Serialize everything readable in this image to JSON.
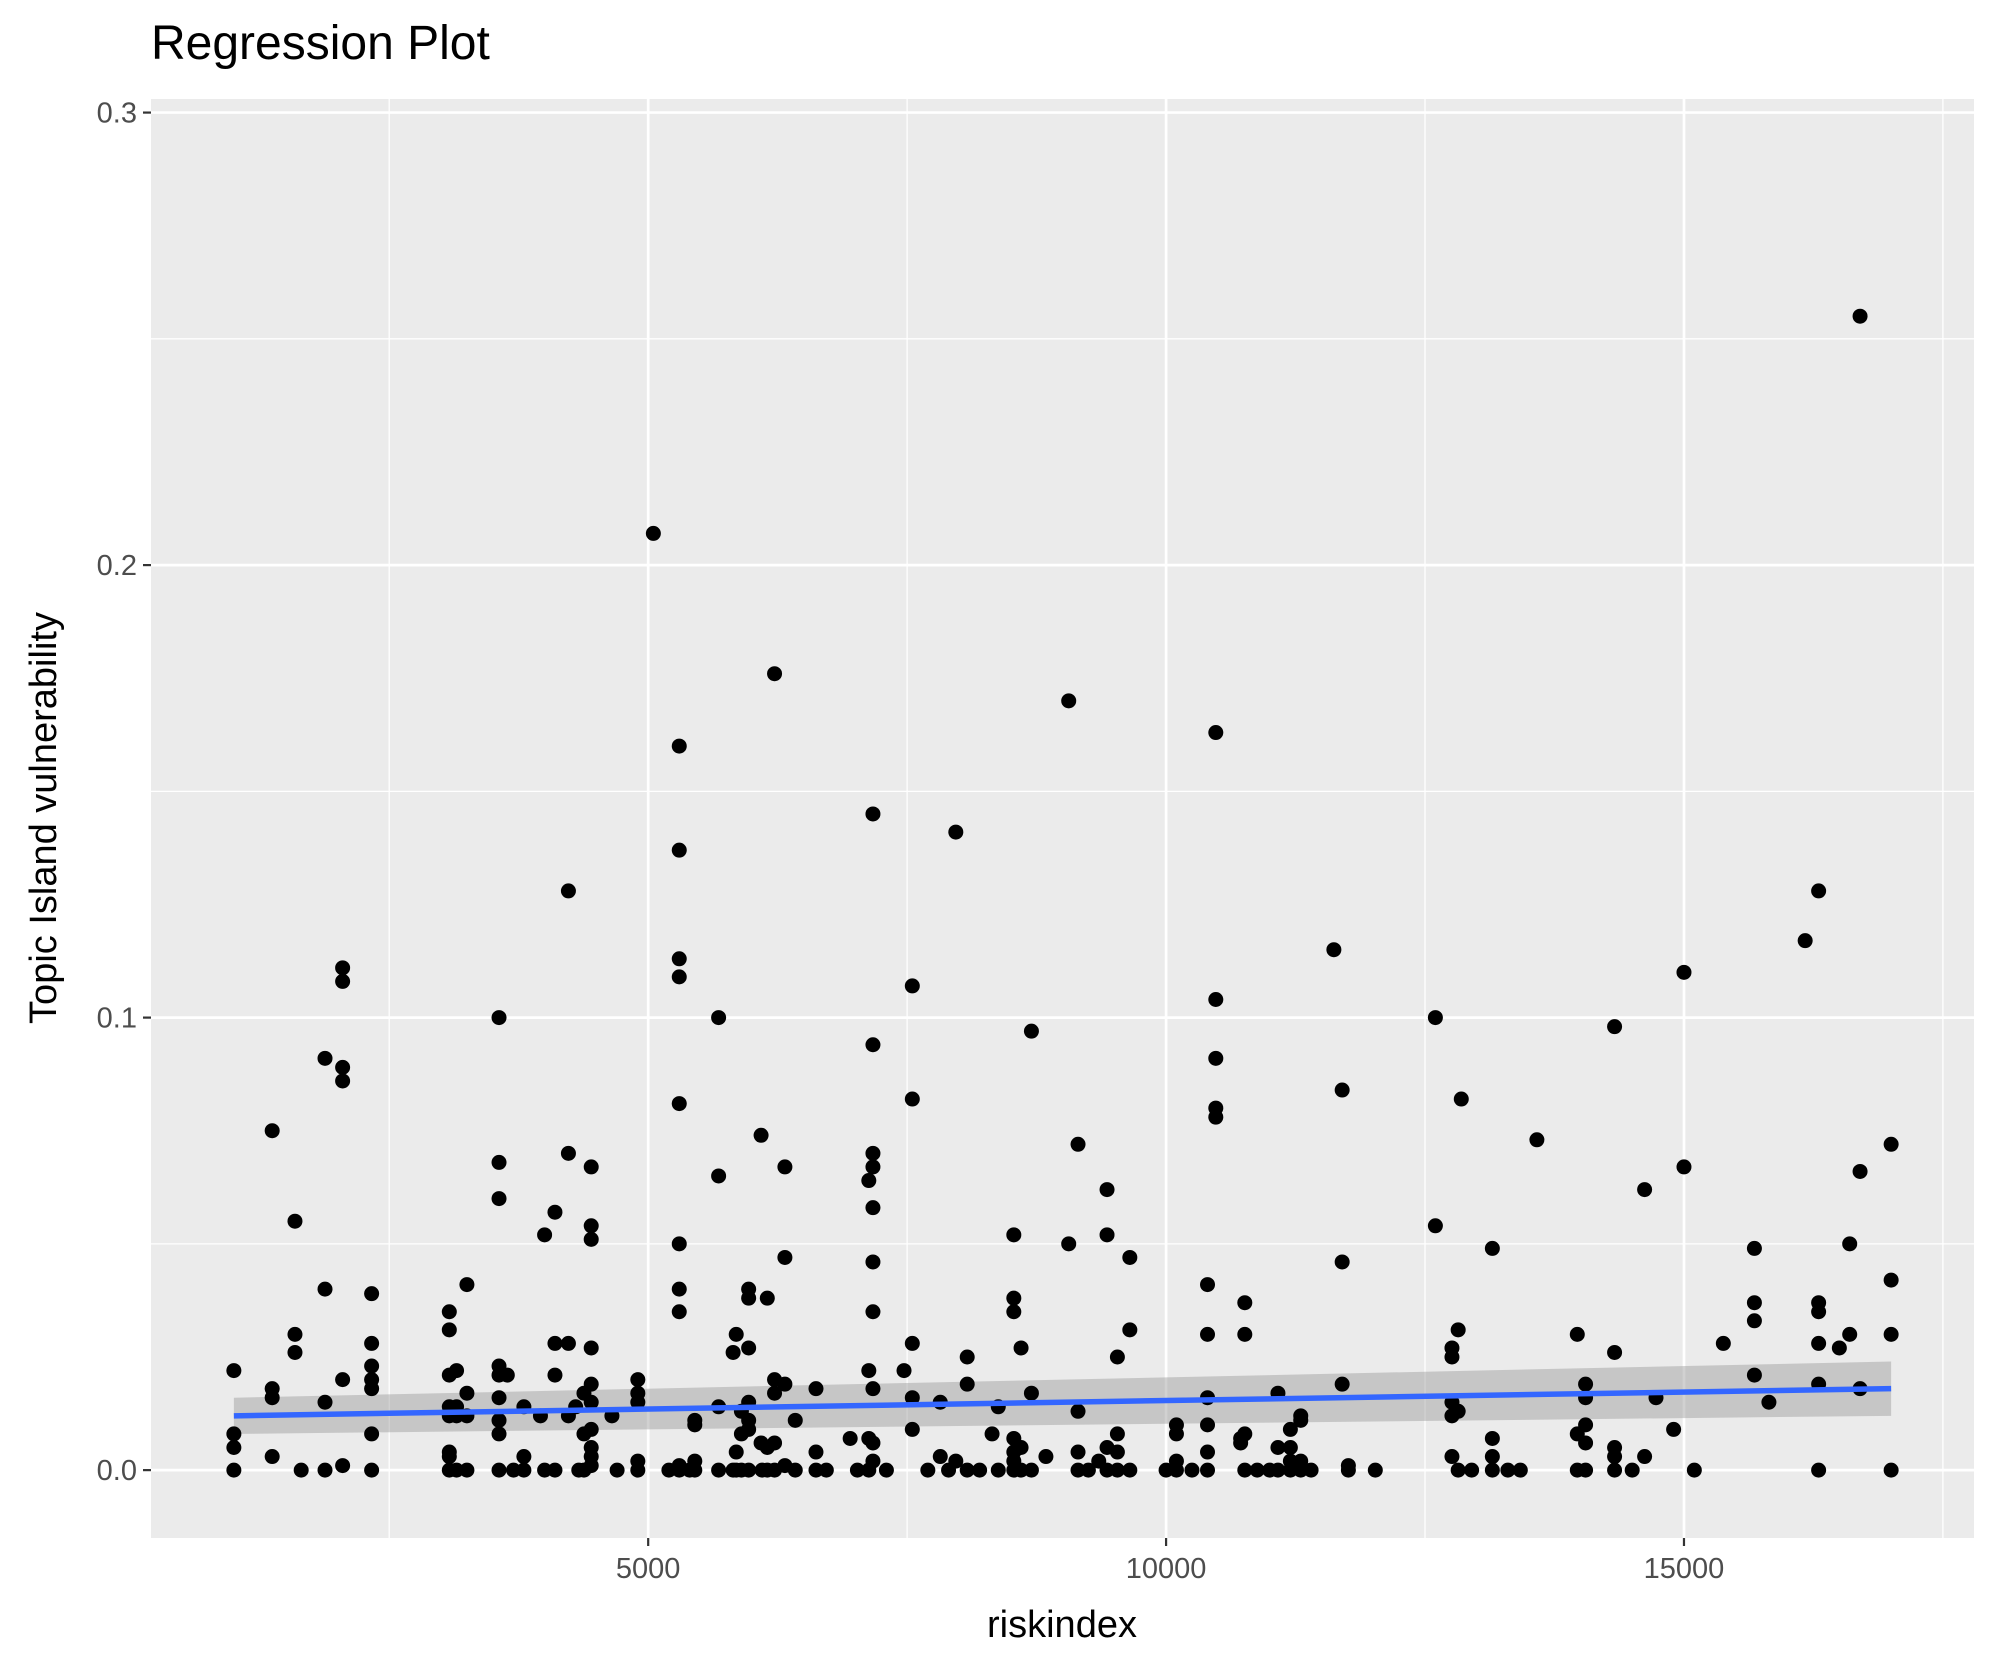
{
  "chart_data": {
    "type": "scatter",
    "title": "Regression Plot",
    "xlabel": "riskindex",
    "ylabel": "Topic Island vulnerability",
    "xlim": [
      200,
      17800
    ],
    "ylim": [
      -0.015,
      0.303
    ],
    "x_ticks": [
      5000,
      10000,
      15000
    ],
    "x_tick_labels": [
      "5000",
      "10000",
      "15000"
    ],
    "x_minor_ticks": [
      2500,
      7500,
      12500,
      17500
    ],
    "y_ticks": [
      0.0,
      0.1,
      0.2,
      0.3
    ],
    "y_tick_labels": [
      "0.0",
      "0.1",
      "0.2",
      "0.3"
    ],
    "y_minor_ticks": [
      0.05,
      0.15,
      0.25
    ],
    "grid": true,
    "background": "#ebebeb",
    "point_color": "#000000",
    "line_color": "#3366ff",
    "band_color": "#999999",
    "regression": {
      "x": [
        1000,
        17000
      ],
      "y": [
        0.012,
        0.018
      ],
      "band_lower": [
        0.008,
        0.012
      ],
      "band_upper": [
        0.016,
        0.024
      ]
    },
    "points": [
      [
        1000,
        0.022
      ],
      [
        1000,
        0.008
      ],
      [
        1000,
        0.005
      ],
      [
        1000,
        0.0
      ],
      [
        1370,
        0.075
      ],
      [
        1370,
        0.018
      ],
      [
        1370,
        0.016
      ],
      [
        1370,
        0.003
      ],
      [
        1590,
        0.055
      ],
      [
        1590,
        0.03
      ],
      [
        1590,
        0.026
      ],
      [
        1650,
        0.0
      ],
      [
        1880,
        0.091
      ],
      [
        1880,
        0.04
      ],
      [
        1880,
        0.015
      ],
      [
        1880,
        0.0
      ],
      [
        2050,
        0.111
      ],
      [
        2050,
        0.108
      ],
      [
        2050,
        0.089
      ],
      [
        2050,
        0.086
      ],
      [
        2050,
        0.02
      ],
      [
        2050,
        0.001
      ],
      [
        2330,
        0.039
      ],
      [
        2330,
        0.028
      ],
      [
        2330,
        0.023
      ],
      [
        2330,
        0.02
      ],
      [
        2330,
        0.018
      ],
      [
        2330,
        0.008
      ],
      [
        2330,
        0.0
      ],
      [
        3080,
        0.035
      ],
      [
        3080,
        0.031
      ],
      [
        3080,
        0.021
      ],
      [
        3080,
        0.014
      ],
      [
        3080,
        0.012
      ],
      [
        3080,
        0.004
      ],
      [
        3080,
        0.003
      ],
      [
        3080,
        0.0
      ],
      [
        3150,
        0.022
      ],
      [
        3150,
        0.014
      ],
      [
        3150,
        0.012
      ],
      [
        3150,
        0.0
      ],
      [
        3250,
        0.041
      ],
      [
        3250,
        0.017
      ],
      [
        3250,
        0.012
      ],
      [
        3250,
        0.0
      ],
      [
        3560,
        0.1
      ],
      [
        3560,
        0.068
      ],
      [
        3560,
        0.06
      ],
      [
        3560,
        0.023
      ],
      [
        3560,
        0.021
      ],
      [
        3560,
        0.016
      ],
      [
        3560,
        0.011
      ],
      [
        3560,
        0.008
      ],
      [
        3560,
        0.0
      ],
      [
        3640,
        0.021
      ],
      [
        3700,
        0.0
      ],
      [
        3800,
        0.014
      ],
      [
        3800,
        0.003
      ],
      [
        3800,
        0.0
      ],
      [
        3960,
        0.012
      ],
      [
        4000,
        0.052
      ],
      [
        4000,
        0.0
      ],
      [
        4100,
        0.057
      ],
      [
        4100,
        0.028
      ],
      [
        4100,
        0.021
      ],
      [
        4100,
        0.0
      ],
      [
        4230,
        0.128
      ],
      [
        4230,
        0.07
      ],
      [
        4230,
        0.028
      ],
      [
        4230,
        0.012
      ],
      [
        4300,
        0.014
      ],
      [
        4330,
        0.0
      ],
      [
        4380,
        0.017
      ],
      [
        4380,
        0.008
      ],
      [
        4380,
        0.0
      ],
      [
        4450,
        0.067
      ],
      [
        4450,
        0.054
      ],
      [
        4450,
        0.051
      ],
      [
        4450,
        0.027
      ],
      [
        4450,
        0.019
      ],
      [
        4450,
        0.015
      ],
      [
        4450,
        0.009
      ],
      [
        4450,
        0.005
      ],
      [
        4450,
        0.003
      ],
      [
        4450,
        0.001
      ],
      [
        4650,
        0.012
      ],
      [
        4700,
        0.0
      ],
      [
        4900,
        0.02
      ],
      [
        4900,
        0.017
      ],
      [
        4900,
        0.015
      ],
      [
        4900,
        0.002
      ],
      [
        4900,
        0.0
      ],
      [
        5050,
        0.207
      ],
      [
        5200,
        0.0
      ],
      [
        5300,
        0.16
      ],
      [
        5300,
        0.137
      ],
      [
        5300,
        0.113
      ],
      [
        5300,
        0.109
      ],
      [
        5300,
        0.081
      ],
      [
        5300,
        0.05
      ],
      [
        5300,
        0.04
      ],
      [
        5300,
        0.035
      ],
      [
        5300,
        0.001
      ],
      [
        5300,
        0.0
      ],
      [
        5400,
        0.0
      ],
      [
        5450,
        0.011
      ],
      [
        5450,
        0.01
      ],
      [
        5450,
        0.002
      ],
      [
        5450,
        0.0
      ],
      [
        5680,
        0.1
      ],
      [
        5680,
        0.065
      ],
      [
        5680,
        0.014
      ],
      [
        5680,
        0.0
      ],
      [
        5820,
        0.026
      ],
      [
        5820,
        0.0
      ],
      [
        5850,
        0.03
      ],
      [
        5850,
        0.004
      ],
      [
        5850,
        0.0
      ],
      [
        5900,
        0.013
      ],
      [
        5900,
        0.008
      ],
      [
        5900,
        0.0
      ],
      [
        5970,
        0.04
      ],
      [
        5970,
        0.038
      ],
      [
        5970,
        0.027
      ],
      [
        5970,
        0.015
      ],
      [
        5970,
        0.011
      ],
      [
        5970,
        0.009
      ],
      [
        5970,
        0.0
      ],
      [
        6090,
        0.074
      ],
      [
        6090,
        0.006
      ],
      [
        6100,
        0.0
      ],
      [
        6150,
        0.038
      ],
      [
        6150,
        0.005
      ],
      [
        6150,
        0.0
      ],
      [
        6220,
        0.176
      ],
      [
        6220,
        0.02
      ],
      [
        6220,
        0.017
      ],
      [
        6220,
        0.006
      ],
      [
        6220,
        0.0
      ],
      [
        6320,
        0.067
      ],
      [
        6320,
        0.047
      ],
      [
        6320,
        0.019
      ],
      [
        6320,
        0.001
      ],
      [
        6420,
        0.011
      ],
      [
        6420,
        0.0
      ],
      [
        6620,
        0.018
      ],
      [
        6620,
        0.004
      ],
      [
        6620,
        0.0
      ],
      [
        6720,
        0.0
      ],
      [
        6950,
        0.007
      ],
      [
        7020,
        0.0
      ],
      [
        7130,
        0.064
      ],
      [
        7130,
        0.022
      ],
      [
        7130,
        0.007
      ],
      [
        7130,
        0.0
      ],
      [
        7170,
        0.145
      ],
      [
        7170,
        0.094
      ],
      [
        7170,
        0.07
      ],
      [
        7170,
        0.067
      ],
      [
        7170,
        0.058
      ],
      [
        7170,
        0.046
      ],
      [
        7170,
        0.035
      ],
      [
        7170,
        0.018
      ],
      [
        7170,
        0.006
      ],
      [
        7170,
        0.002
      ],
      [
        7300,
        0.0
      ],
      [
        7470,
        0.022
      ],
      [
        7550,
        0.107
      ],
      [
        7550,
        0.082
      ],
      [
        7550,
        0.028
      ],
      [
        7550,
        0.016
      ],
      [
        7550,
        0.009
      ],
      [
        7700,
        0.0
      ],
      [
        7820,
        0.015
      ],
      [
        7820,
        0.003
      ],
      [
        7900,
        0.0
      ],
      [
        7970,
        0.141
      ],
      [
        7970,
        0.002
      ],
      [
        8080,
        0.025
      ],
      [
        8080,
        0.019
      ],
      [
        8080,
        0.0
      ],
      [
        8200,
        0.0
      ],
      [
        8320,
        0.008
      ],
      [
        8380,
        0.014
      ],
      [
        8380,
        0.0
      ],
      [
        8530,
        0.052
      ],
      [
        8530,
        0.038
      ],
      [
        8530,
        0.035
      ],
      [
        8530,
        0.007
      ],
      [
        8530,
        0.004
      ],
      [
        8530,
        0.002
      ],
      [
        8530,
        0.0
      ],
      [
        8600,
        0.027
      ],
      [
        8600,
        0.005
      ],
      [
        8600,
        0.0
      ],
      [
        8700,
        0.097
      ],
      [
        8700,
        0.017
      ],
      [
        8700,
        0.0
      ],
      [
        8840,
        0.003
      ],
      [
        9060,
        0.17
      ],
      [
        9060,
        0.05
      ],
      [
        9150,
        0.072
      ],
      [
        9150,
        0.013
      ],
      [
        9150,
        0.004
      ],
      [
        9150,
        0.0
      ],
      [
        9250,
        0.0
      ],
      [
        9350,
        0.002
      ],
      [
        9430,
        0.062
      ],
      [
        9430,
        0.052
      ],
      [
        9430,
        0.005
      ],
      [
        9430,
        0.0
      ],
      [
        9530,
        0.025
      ],
      [
        9530,
        0.008
      ],
      [
        9530,
        0.004
      ],
      [
        9530,
        0.0
      ],
      [
        9650,
        0.047
      ],
      [
        9650,
        0.031
      ],
      [
        9650,
        0.0
      ],
      [
        10000,
        0.0
      ],
      [
        10100,
        0.01
      ],
      [
        10100,
        0.008
      ],
      [
        10100,
        0.002
      ],
      [
        10100,
        0.0
      ],
      [
        10250,
        0.0
      ],
      [
        10400,
        0.041
      ],
      [
        10400,
        0.03
      ],
      [
        10400,
        0.016
      ],
      [
        10400,
        0.01
      ],
      [
        10400,
        0.004
      ],
      [
        10400,
        0.0
      ],
      [
        10480,
        0.163
      ],
      [
        10480,
        0.104
      ],
      [
        10480,
        0.091
      ],
      [
        10480,
        0.08
      ],
      [
        10480,
        0.078
      ],
      [
        10720,
        0.007
      ],
      [
        10720,
        0.006
      ],
      [
        10760,
        0.037
      ],
      [
        10760,
        0.03
      ],
      [
        10760,
        0.008
      ],
      [
        10760,
        0.0
      ],
      [
        10880,
        0.0
      ],
      [
        11000,
        0.0
      ],
      [
        11080,
        0.017
      ],
      [
        11080,
        0.005
      ],
      [
        11080,
        0.0
      ],
      [
        11200,
        0.009
      ],
      [
        11200,
        0.005
      ],
      [
        11200,
        0.002
      ],
      [
        11200,
        0.0
      ],
      [
        11300,
        0.012
      ],
      [
        11300,
        0.011
      ],
      [
        11300,
        0.002
      ],
      [
        11300,
        0.0
      ],
      [
        11400,
        0.0
      ],
      [
        11620,
        0.115
      ],
      [
        11700,
        0.084
      ],
      [
        11700,
        0.046
      ],
      [
        11700,
        0.019
      ],
      [
        11760,
        0.001
      ],
      [
        11760,
        0.0
      ],
      [
        12020,
        0.0
      ],
      [
        12600,
        0.1
      ],
      [
        12600,
        0.054
      ],
      [
        12760,
        0.027
      ],
      [
        12760,
        0.025
      ],
      [
        12760,
        0.015
      ],
      [
        12760,
        0.012
      ],
      [
        12760,
        0.003
      ],
      [
        12820,
        0.031
      ],
      [
        12820,
        0.013
      ],
      [
        12820,
        0.0
      ],
      [
        12850,
        0.082
      ],
      [
        12950,
        0.0
      ],
      [
        13150,
        0.049
      ],
      [
        13150,
        0.007
      ],
      [
        13150,
        0.003
      ],
      [
        13150,
        0.0
      ],
      [
        13300,
        0.0
      ],
      [
        13420,
        0.0
      ],
      [
        13580,
        0.073
      ],
      [
        13970,
        0.03
      ],
      [
        13970,
        0.008
      ],
      [
        13970,
        0.0
      ],
      [
        14050,
        0.019
      ],
      [
        14050,
        0.016
      ],
      [
        14050,
        0.01
      ],
      [
        14050,
        0.006
      ],
      [
        14050,
        0.0
      ],
      [
        14330,
        0.098
      ],
      [
        14330,
        0.026
      ],
      [
        14330,
        0.005
      ],
      [
        14330,
        0.003
      ],
      [
        14330,
        0.0
      ],
      [
        14500,
        0.0
      ],
      [
        14620,
        0.062
      ],
      [
        14620,
        0.003
      ],
      [
        14730,
        0.016
      ],
      [
        14900,
        0.009
      ],
      [
        15000,
        0.11
      ],
      [
        15000,
        0.067
      ],
      [
        15100,
        0.0
      ],
      [
        15380,
        0.028
      ],
      [
        15680,
        0.049
      ],
      [
        15680,
        0.037
      ],
      [
        15680,
        0.033
      ],
      [
        15680,
        0.021
      ],
      [
        15820,
        0.015
      ],
      [
        16170,
        0.117
      ],
      [
        16300,
        0.128
      ],
      [
        16300,
        0.037
      ],
      [
        16300,
        0.035
      ],
      [
        16300,
        0.028
      ],
      [
        16300,
        0.019
      ],
      [
        16300,
        0.0
      ],
      [
        16500,
        0.027
      ],
      [
        16600,
        0.05
      ],
      [
        16600,
        0.03
      ],
      [
        16700,
        0.255
      ],
      [
        16700,
        0.066
      ],
      [
        16700,
        0.018
      ],
      [
        17000,
        0.072
      ],
      [
        17000,
        0.042
      ],
      [
        17000,
        0.03
      ],
      [
        17000,
        0.0
      ]
    ]
  }
}
